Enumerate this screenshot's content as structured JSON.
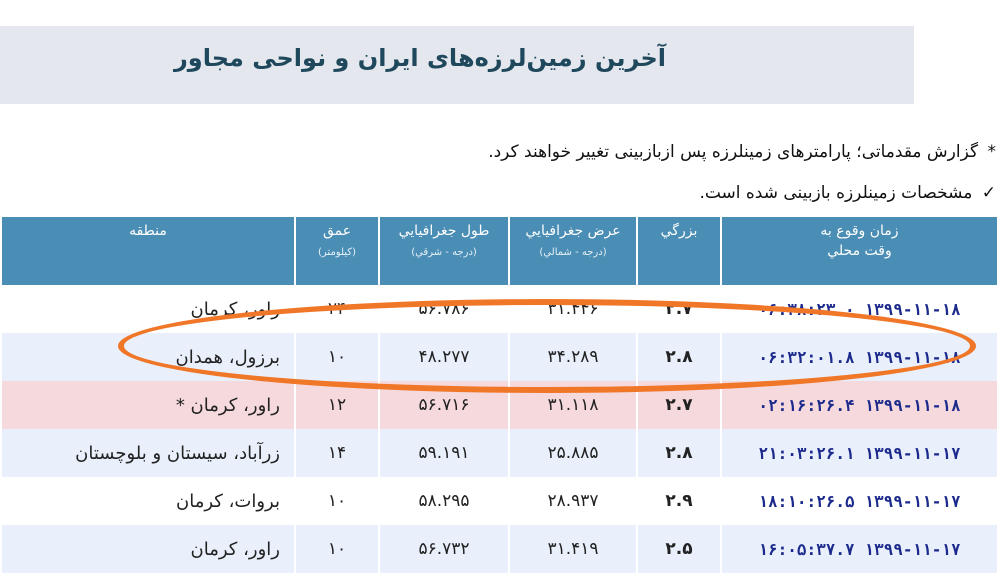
{
  "header": {
    "title": "آخرین زمین‌لرزه‌های ایران و نواحی مجاور"
  },
  "notes": [
    {
      "mark": "*",
      "text": "گزارش مقدماتی؛ پارامترهای زمینلرزه پس ازبازبینی تغییر خواهند کرد."
    },
    {
      "mark": "✓",
      "text": "مشخصات زمینلرزه بازبینی شده است."
    }
  ],
  "table": {
    "headers": {
      "time": "زمان وقوع به",
      "time_sub": "وقت محلي",
      "mag": "بزرگي",
      "lat": "عرض جغرافيايي",
      "lat_sub": "(درجه - شمالي)",
      "lon": "طول جغرافيايي",
      "lon_sub": "(درجه - شرقي)",
      "depth": "عمق",
      "depth_sub": "(کيلومتر)",
      "region": "منطقه"
    },
    "rows": [
      {
        "time": "۱۳۹۹-۱۱-۱۸ ۰۶:۳۸:۲۳.۰",
        "mag": "۲.۷",
        "lat": "۳۱.۴۴۶",
        "lon": "۵۶.۷۸۶",
        "depth": "۲۴",
        "region": "راور، کرمان"
      },
      {
        "time": "۱۳۹۹-۱۱-۱۸ ۰۶:۳۲:۰۱.۸",
        "mag": "۲.۸",
        "lat": "۳۴.۲۸۹",
        "lon": "۴۸.۲۷۷",
        "depth": "۱۰",
        "region": "برزول، همدان"
      },
      {
        "time": "۱۳۹۹-۱۱-۱۸ ۰۲:۱۶:۲۶.۴",
        "mag": "۲.۷",
        "lat": "۳۱.۱۱۸",
        "lon": "۵۶.۷۱۶",
        "depth": "۱۲",
        "region": "راور، کرمان *"
      },
      {
        "time": "۱۳۹۹-۱۱-۱۷ ۲۱:۰۳:۲۶.۱",
        "mag": "۲.۸",
        "lat": "۲۵.۸۸۵",
        "lon": "۵۹.۱۹۱",
        "depth": "۱۴",
        "region": "زرآباد، سیستان و بلوچستان"
      },
      {
        "time": "۱۳۹۹-۱۱-۱۷ ۱۸:۱۰:۲۶.۵",
        "mag": "۲.۹",
        "lat": "۲۸.۹۳۷",
        "lon": "۵۸.۲۹۵",
        "depth": "۱۰",
        "region": "بروات، کرمان"
      },
      {
        "time": "۱۳۹۹-۱۱-۱۷ ۱۶:۰۵:۳۷.۷",
        "mag": "۲.۵",
        "lat": "۳۱.۴۱۹",
        "lon": "۵۶.۷۳۲",
        "depth": "۱۰",
        "region": "راور، کرمان"
      }
    ]
  },
  "colors": {
    "header_bg": "#4a8db5",
    "title_bg": "#e4e8ee",
    "highlight": "#f07628",
    "preliminary_row": "#f6d9dc"
  }
}
